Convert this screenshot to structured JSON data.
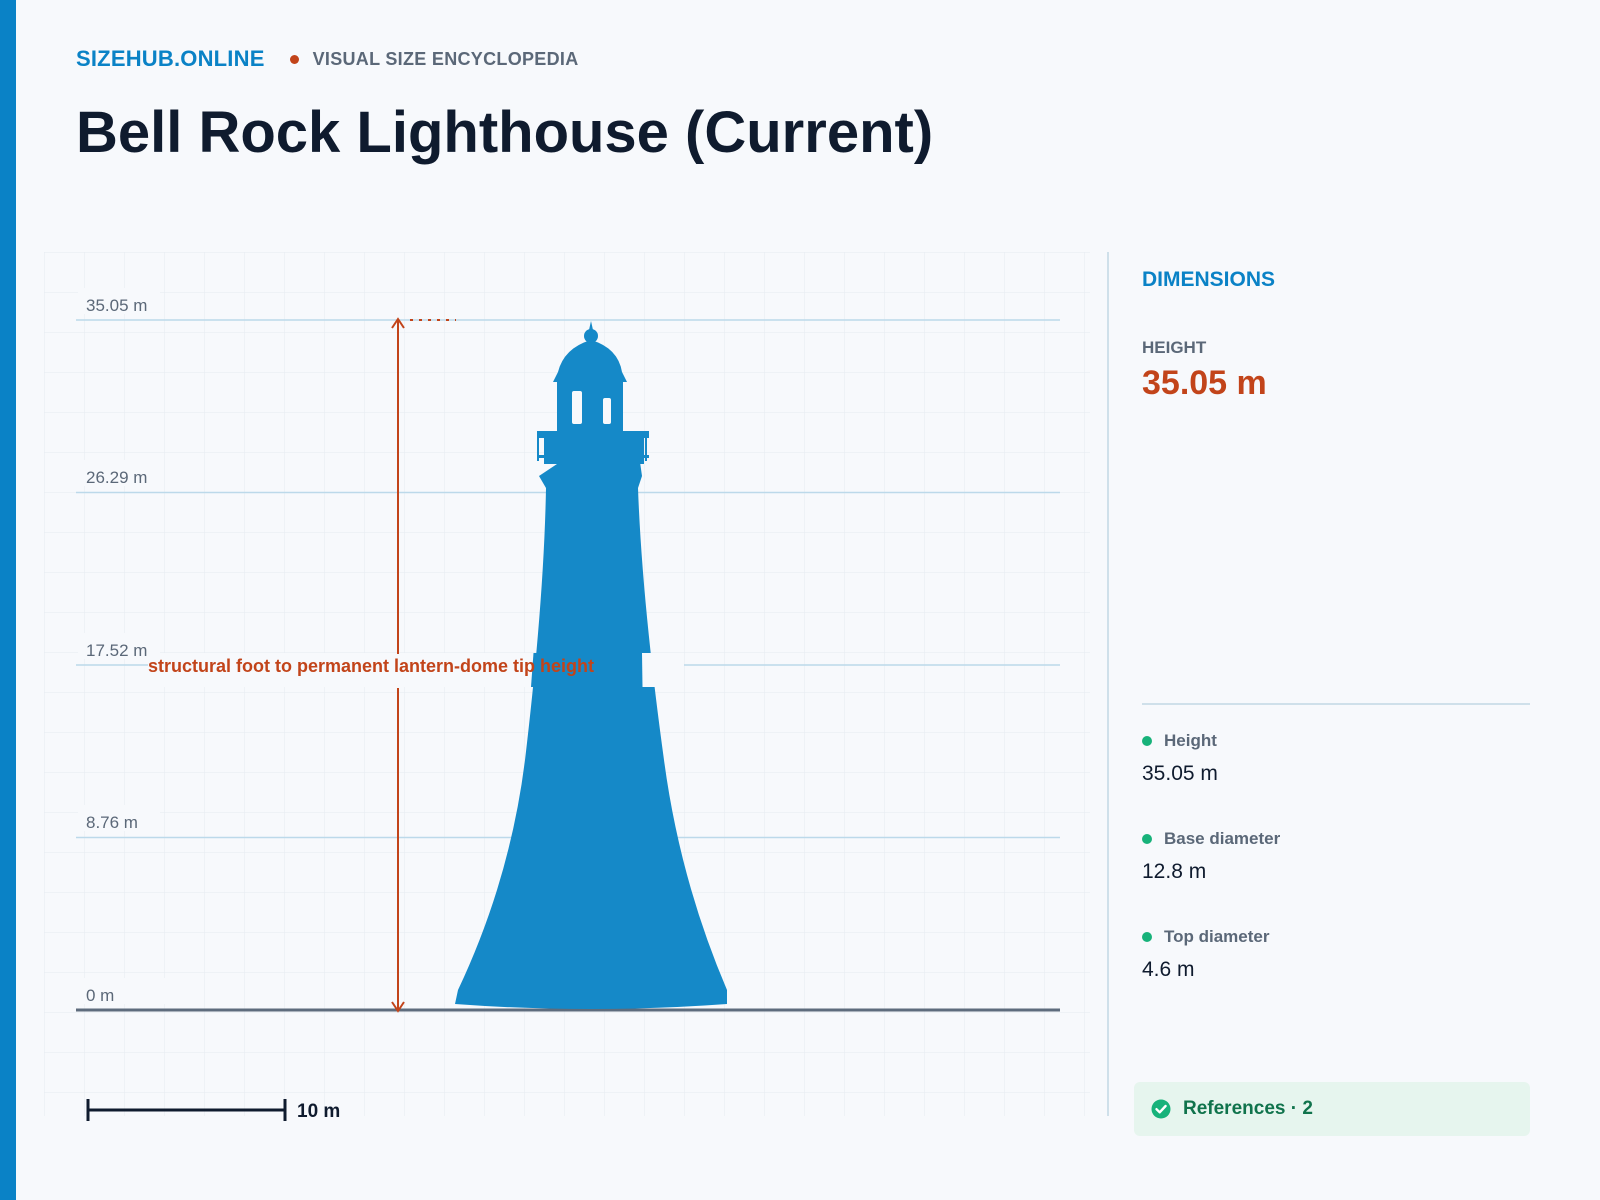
{
  "header": {
    "brand": "SIZEHUB.ONLINE",
    "tagline": "VISUAL SIZE ENCYCLOPEDIA",
    "title": "Bell Rock Lighthouse (Current)"
  },
  "colors": {
    "accent": "#0a82c6",
    "highlight": "#c2441a",
    "silhouette": "#1589c8",
    "status_dot": "#17b27a"
  },
  "diagram": {
    "axis_labels": [
      "35.05 m",
      "26.29 m",
      "17.52 m",
      "8.76 m",
      "0 m"
    ],
    "measure_label": "structural foot to permanent lantern-dome tip height",
    "scale_bar_label": "10 m",
    "subject_icon": "lighthouse-silhouette-icon"
  },
  "sidebar": {
    "title": "DIMENSIONS",
    "height_label": "HEIGHT",
    "height_value": "35.05 m",
    "dimensions": [
      {
        "name": "Height",
        "value": "35.05 m"
      },
      {
        "name": "Base diameter",
        "value": "12.8 m"
      },
      {
        "name": "Top diameter",
        "value": "4.6 m"
      }
    ],
    "references_label": "References · 2",
    "references_icon": "check-circle-icon"
  }
}
